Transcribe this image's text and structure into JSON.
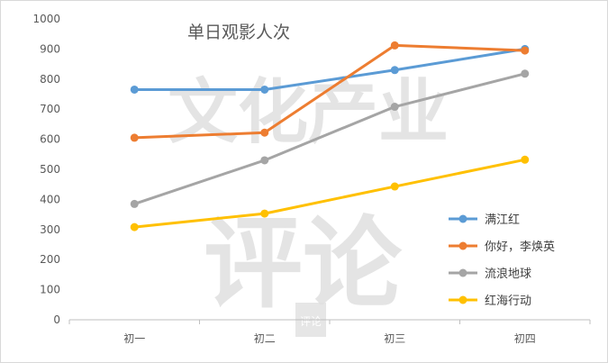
{
  "chart_data": {
    "type": "line",
    "title": "单日观影人次",
    "categories": [
      "初一",
      "初二",
      "初三",
      "初四"
    ],
    "ylim": [
      0,
      1000
    ],
    "yticks": [
      0,
      100,
      200,
      300,
      400,
      500,
      600,
      700,
      800,
      900,
      1000
    ],
    "grid": false,
    "legend_position": "right",
    "series": [
      {
        "name": "满江红",
        "color": "#5b9bd5",
        "values": [
          765,
          765,
          830,
          900
        ]
      },
      {
        "name": "你好，李焕英",
        "color": "#ed7d31",
        "values": [
          605,
          622,
          912,
          895
        ]
      },
      {
        "name": "流浪地球",
        "color": "#a5a5a5",
        "values": [
          385,
          530,
          708,
          818
        ]
      },
      {
        "name": "红海行动",
        "color": "#ffc000",
        "values": [
          308,
          353,
          443,
          532
        ]
      }
    ]
  },
  "watermark": {
    "text_top": "文化产业",
    "text_bottom": "评论",
    "seal": "评论"
  }
}
